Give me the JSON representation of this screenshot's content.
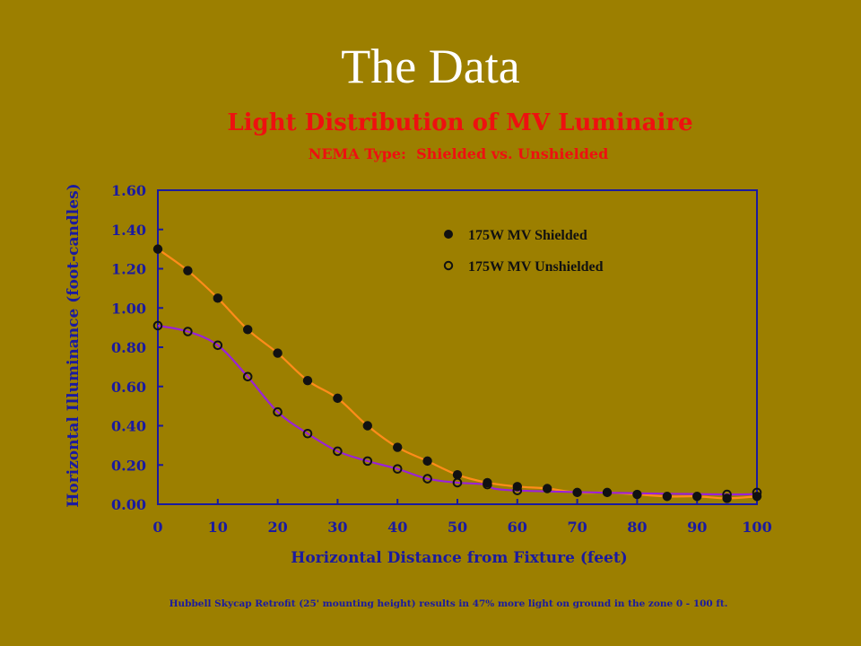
{
  "slide": {
    "title": "The Data"
  },
  "chart_data": {
    "type": "scatter",
    "title": "Light Distribution of MV Luminaire",
    "subtitle": "NEMA Type:  Shielded vs. Unshielded",
    "xlabel": "Horizontal Distance from Fixture (feet)",
    "ylabel": "Horizontal Illuminance (foot-candles)",
    "xlim": [
      0,
      100
    ],
    "ylim": [
      0,
      1.6
    ],
    "x_ticks": [
      "0",
      "10",
      "20",
      "30",
      "40",
      "50",
      "60",
      "70",
      "80",
      "90",
      "100"
    ],
    "y_ticks": [
      "0.00",
      "0.20",
      "0.40",
      "0.60",
      "0.80",
      "1.00",
      "1.20",
      "1.40",
      "1.60"
    ],
    "grid": false,
    "legend_position": "top-right",
    "series": [
      {
        "name": "175W MV Shielded",
        "marker": "filled-circle",
        "fit_color": "#ff8c1a",
        "x": [
          0,
          5,
          10,
          15,
          20,
          25,
          30,
          35,
          40,
          45,
          50,
          55,
          60,
          65,
          70,
          75,
          80,
          85,
          90,
          95,
          100
        ],
        "y": [
          1.3,
          1.19,
          1.05,
          0.89,
          0.77,
          0.63,
          0.54,
          0.4,
          0.29,
          0.22,
          0.15,
          0.11,
          0.09,
          0.08,
          0.06,
          0.06,
          0.05,
          0.04,
          0.04,
          0.03,
          0.04
        ]
      },
      {
        "name": "175W MV Unshielded",
        "marker": "open-circle",
        "fit_color": "#9a22d8",
        "x": [
          0,
          5,
          10,
          15,
          20,
          25,
          30,
          35,
          40,
          45,
          50,
          55,
          60,
          95,
          100
        ],
        "y": [
          0.91,
          0.88,
          0.81,
          0.65,
          0.47,
          0.36,
          0.27,
          0.22,
          0.18,
          0.13,
          0.11,
          0.1,
          0.07,
          0.05,
          0.06
        ]
      }
    ],
    "footnote": "Hubbell Skycap Retrofit (25' mounting height) results in 47% more light on ground in the zone 0 - 100 ft."
  }
}
